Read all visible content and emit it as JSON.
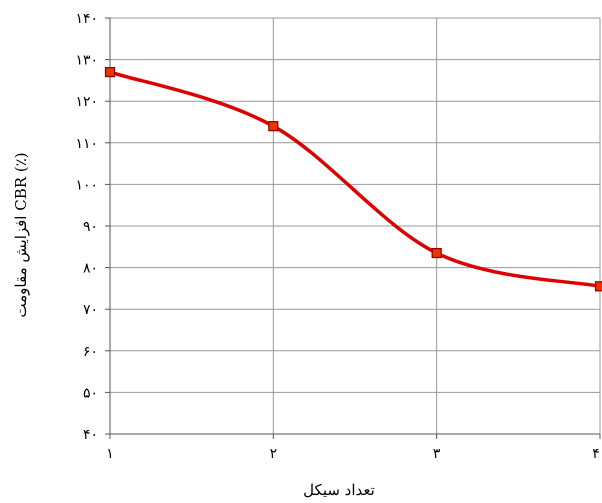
{
  "chart_data": {
    "type": "line",
    "x": [
      1,
      2,
      3,
      4
    ],
    "x_tick_labels": [
      "۱",
      "۲",
      "۳",
      "۴"
    ],
    "y_tick_labels": [
      "۴۰",
      "۵۰",
      "۶۰",
      "۷۰",
      "۸۰",
      "۹۰",
      "۱۰۰",
      "۱۱۰",
      "۱۲۰",
      "۱۳۰",
      "۱۴۰"
    ],
    "y_ticks": [
      40,
      50,
      60,
      70,
      80,
      90,
      100,
      110,
      120,
      130,
      140
    ],
    "series": [
      {
        "values": [
          127,
          114,
          83.5,
          75.5
        ],
        "color": "#dd0000",
        "marker": "square",
        "smooth": true
      }
    ],
    "xlabel": "تعداد سیکل",
    "ylabel": "افزایش مقاومت CBR (٪)",
    "xlim": [
      1,
      4
    ],
    "ylim": [
      40,
      140
    ],
    "grid": true
  }
}
